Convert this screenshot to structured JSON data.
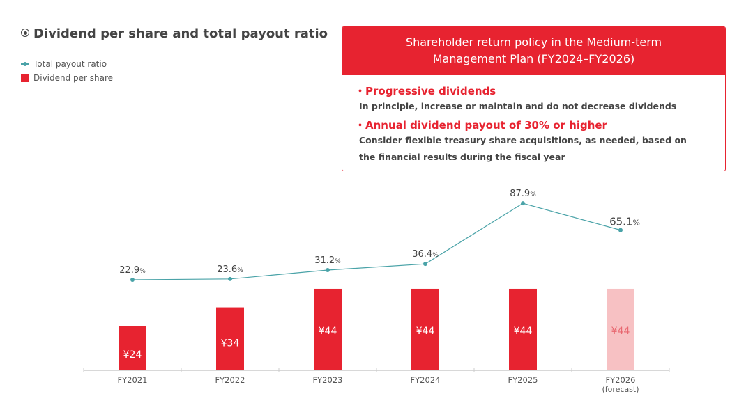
{
  "title": "Dividend per share and total payout ratio",
  "legend": {
    "line": "Total payout ratio",
    "bar": "Dividend per share"
  },
  "policy": {
    "header_line1": "Shareholder return policy in the Medium-term",
    "header_line2": "Management Plan (FY2024–FY2026)",
    "points": [
      {
        "title": "・Progressive dividends",
        "desc": [
          "In principle, increase or maintain and do not decrease dividends"
        ]
      },
      {
        "title": "・Annual dividend payout of 30% or higher",
        "desc": [
          "Consider flexible treasury share acquisitions, as needed, based on",
          "the financial results during the fiscal year"
        ]
      }
    ]
  },
  "colors": {
    "bar": "#e72330",
    "forecast_bar": "#f7c1c3",
    "line": "#4aa3a8"
  },
  "chart_data": {
    "type": "bar+line",
    "categories": [
      "FY2021",
      "FY2022",
      "FY2023",
      "FY2024",
      "FY2025",
      "FY2026"
    ],
    "category_sublabels": [
      "",
      "",
      "",
      "",
      "",
      "(forecast)"
    ],
    "series": [
      {
        "name": "Dividend per share",
        "type": "bar",
        "unit": "¥",
        "values": [
          24,
          34,
          44,
          44,
          44,
          44
        ],
        "labels": [
          "¥24",
          "¥34",
          "¥44",
          "¥44",
          "¥44",
          "¥44"
        ],
        "forecast": [
          false,
          false,
          false,
          false,
          false,
          true
        ]
      },
      {
        "name": "Total payout ratio",
        "type": "line",
        "unit": "%",
        "values": [
          22.9,
          23.6,
          31.2,
          36.4,
          87.9,
          65.1
        ],
        "labels": [
          "22.9",
          "23.6",
          "31.2",
          "36.4",
          "87.9",
          "65.1"
        ]
      }
    ]
  }
}
